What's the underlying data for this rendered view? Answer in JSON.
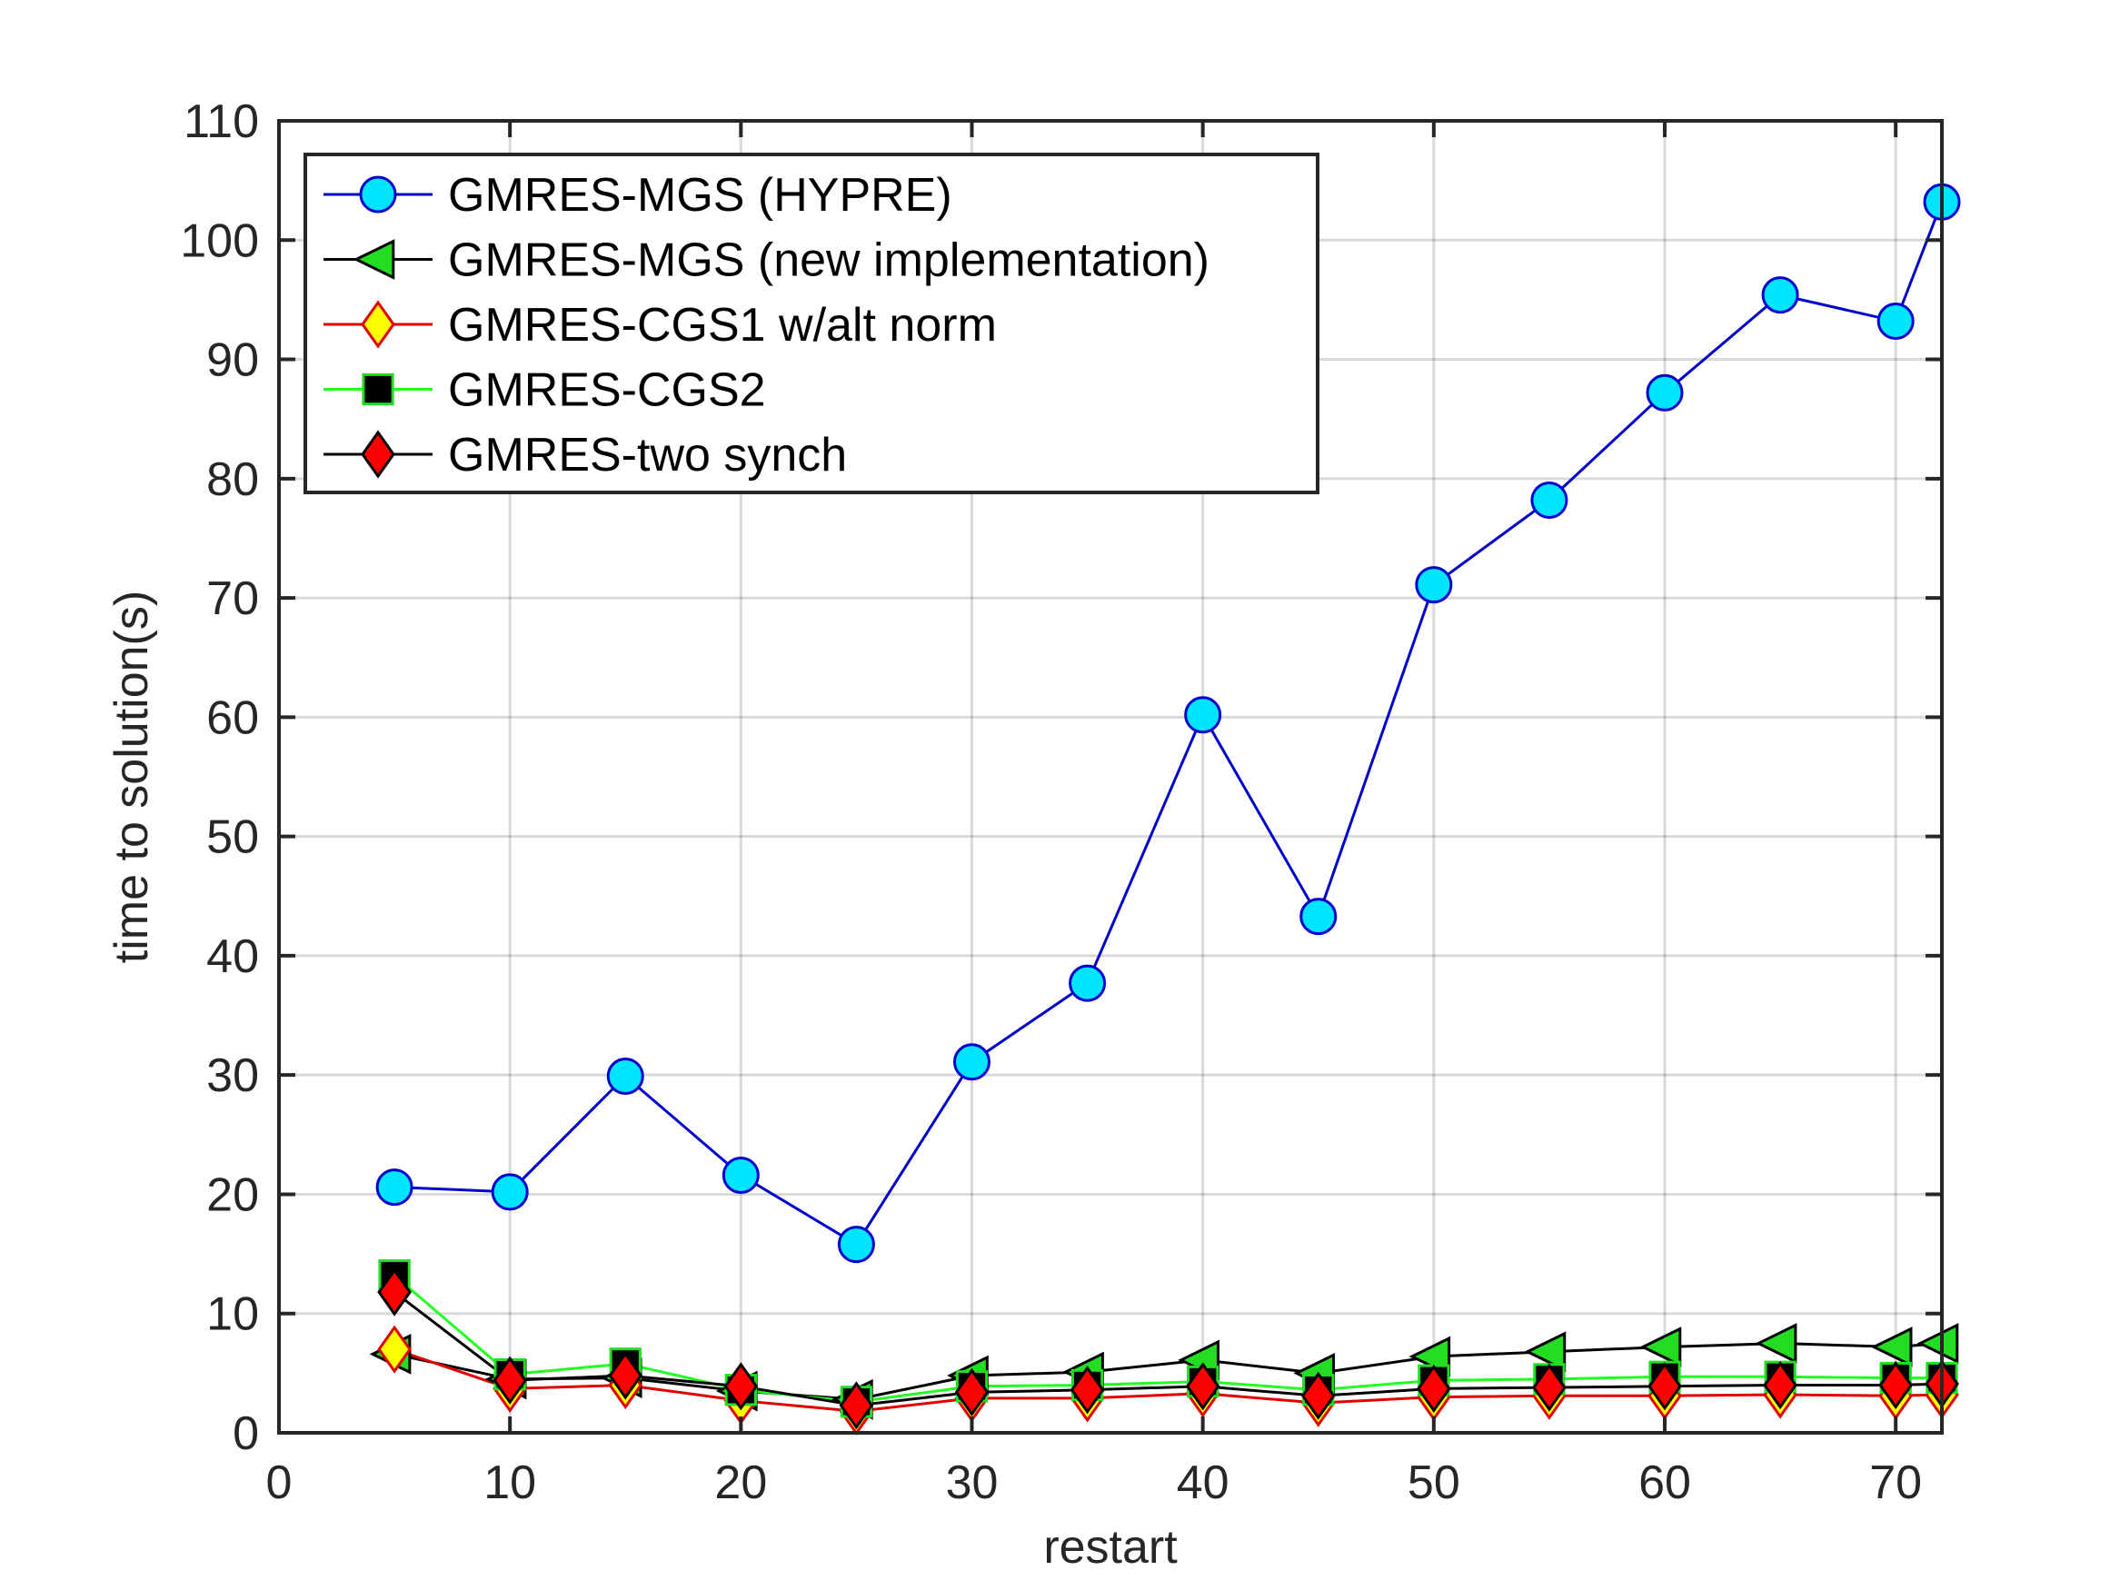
{
  "chart_data": {
    "type": "line",
    "title": "",
    "xlabel": "restart",
    "ylabel": "time to solution(s)",
    "xlim": [
      0,
      72
    ],
    "ylim": [
      0,
      110
    ],
    "xticks": [
      0,
      10,
      20,
      30,
      40,
      50,
      60,
      70
    ],
    "yticks": [
      0,
      10,
      20,
      30,
      40,
      50,
      60,
      70,
      80,
      90,
      100,
      110
    ],
    "grid": true,
    "legend_position": "top-left",
    "x": [
      5,
      10,
      15,
      20,
      25,
      30,
      35,
      40,
      45,
      50,
      55,
      60,
      65,
      70,
      72
    ],
    "series": [
      {
        "name": "GMRES-MGS (HYPRE)",
        "marker": "circle",
        "line_color": "#0000CD",
        "marker_fill": "#00E5FF",
        "marker_edge": "#0000CD",
        "values": [
          20.6,
          20.2,
          29.9,
          21.6,
          15.8,
          31.1,
          37.7,
          60.2,
          43.3,
          71.1,
          78.2,
          87.2,
          95.4,
          93.2,
          103.2
        ]
      },
      {
        "name": "GMRES-MGS (new implementation)",
        "marker": "triangle-left",
        "line_color": "#000000",
        "marker_fill": "#22DD22",
        "marker_edge": "#000000",
        "values": [
          6.6,
          4.5,
          4.6,
          3.5,
          2.8,
          4.8,
          5.1,
          6.1,
          5.0,
          6.4,
          6.8,
          7.2,
          7.5,
          7.2,
          7.5
        ]
      },
      {
        "name": "GMRES-CGS1 w/alt norm",
        "marker": "diamond",
        "line_color": "#E00000",
        "marker_fill": "#FFFF00",
        "marker_edge": "#E00000",
        "values": [
          7.0,
          3.7,
          4.0,
          2.7,
          1.8,
          2.9,
          2.9,
          3.3,
          2.5,
          3.0,
          3.1,
          3.1,
          3.2,
          3.1,
          3.2
        ]
      },
      {
        "name": "GMRES-CGS2",
        "marker": "square",
        "line_color": "#22FF22",
        "marker_fill": "#000000",
        "marker_edge": "#22DD22",
        "values": [
          13.2,
          4.9,
          5.8,
          3.6,
          2.6,
          3.9,
          4.0,
          4.3,
          3.6,
          4.4,
          4.5,
          4.7,
          4.7,
          4.6,
          4.6
        ]
      },
      {
        "name": "GMRES-two synch",
        "marker": "diamond",
        "line_color": "#000000",
        "marker_fill": "#FF0000",
        "marker_edge": "#000000",
        "values": [
          11.8,
          4.4,
          4.8,
          3.9,
          2.3,
          3.4,
          3.6,
          3.9,
          3.1,
          3.7,
          3.8,
          3.9,
          4.0,
          4.0,
          4.1
        ]
      }
    ]
  }
}
